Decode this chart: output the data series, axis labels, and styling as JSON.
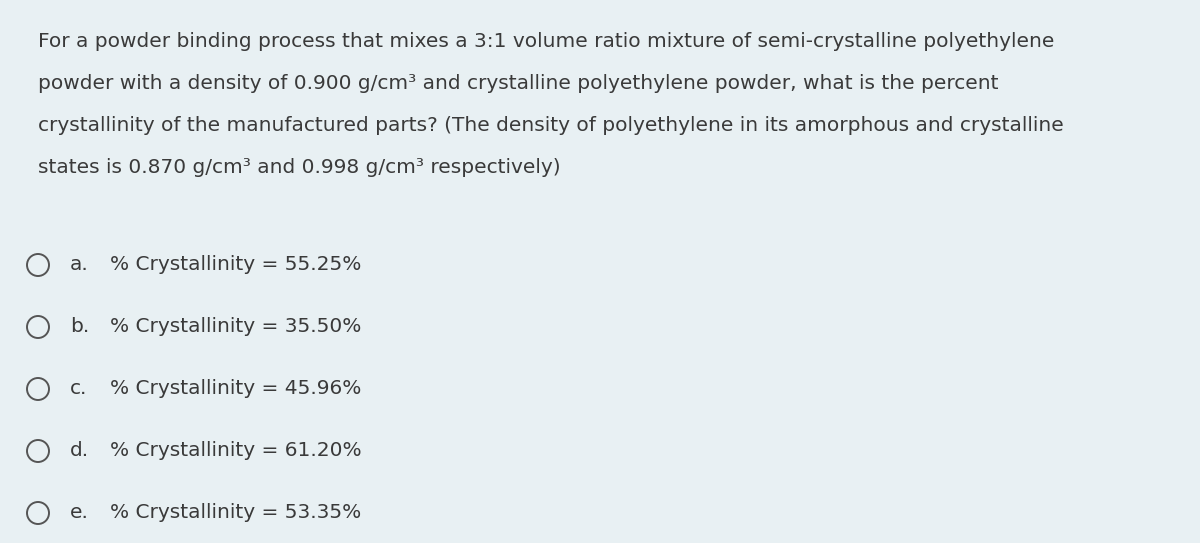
{
  "background_color": "#e8f0f3",
  "question_lines": [
    "For a powder binding process that mixes a 3:1 volume ratio mixture of semi-crystalline polyethylene",
    "powder with a density of 0.900 g/cm³ and crystalline polyethylene powder, what is the percent",
    "crystallinity of the manufactured parts? (The density of polyethylene in its amorphous and crystalline",
    "states is 0.870 g/cm³ and 0.998 g/cm³ respectively)"
  ],
  "options": [
    {
      "label": "a.",
      "text": "% Crystallinity = 55.25%"
    },
    {
      "label": "b.",
      "text": "% Crystallinity = 35.50%"
    },
    {
      "label": "c.",
      "text": "% Crystallinity = 45.96%"
    },
    {
      "label": "d.",
      "text": "% Crystallinity = 61.20%"
    },
    {
      "label": "e.",
      "text": "% Crystallinity = 53.35%"
    }
  ],
  "text_color": "#3a3a3a",
  "circle_edge_color": "#555555",
  "font_size_question": 14.5,
  "font_size_options": 14.5,
  "figsize": [
    12.0,
    5.43
  ],
  "dpi": 100
}
